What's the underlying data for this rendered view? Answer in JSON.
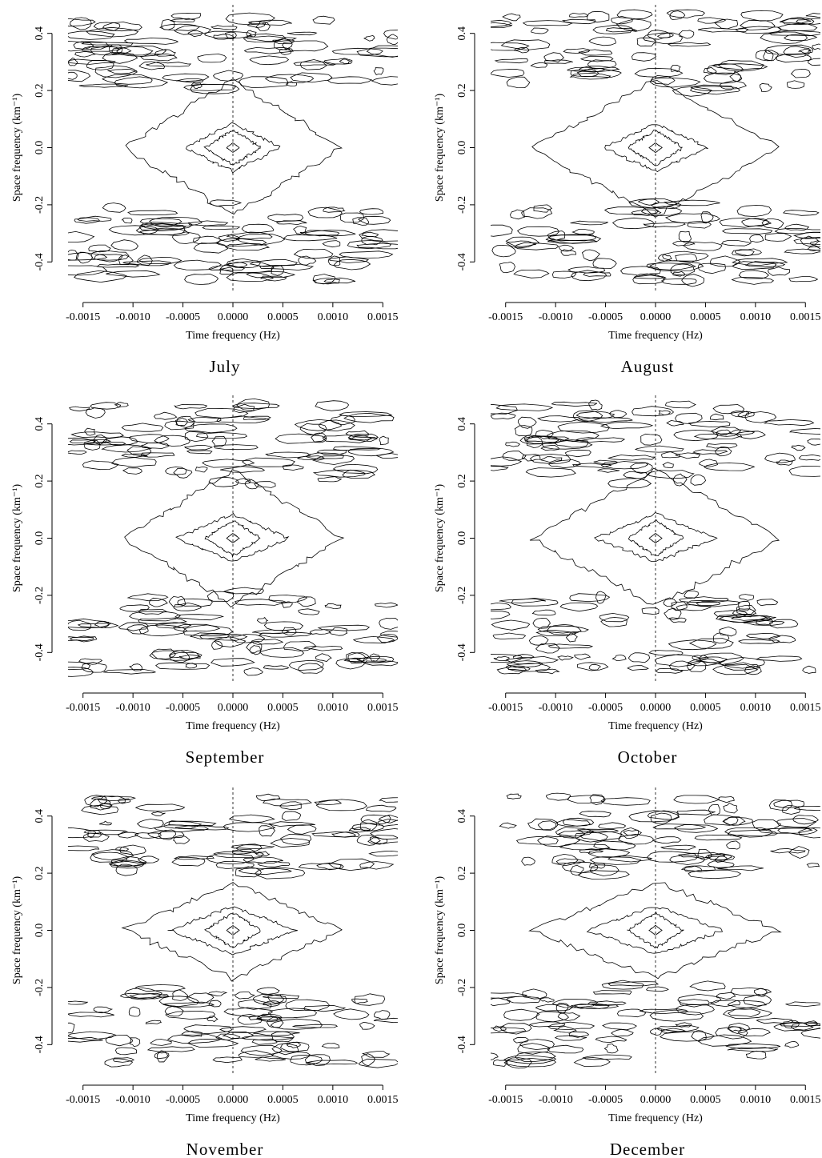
{
  "chart_data": [
    {
      "type": "contour",
      "title": "July",
      "x_label": "Time frequency (Hz)",
      "y_label": "Space frequency (km⁻¹)",
      "xlim": [
        -0.00165,
        0.00165
      ],
      "ylim": [
        -0.5,
        0.5
      ],
      "xticks": [
        -0.0015,
        {
          "value": -0.001,
          "label": "-0.0010"
        },
        -0.0005,
        {
          "value": 0,
          "label": "0.0000"
        },
        0.0005,
        {
          "value": 0.001,
          "label": "0.0010"
        },
        0.0015
      ],
      "yticks": [
        -0.4,
        -0.2,
        {
          "value": 0,
          "label": "0.0"
        },
        0.2,
        0.4
      ]
    },
    {
      "type": "contour",
      "title": "August",
      "x_label": "Time frequency (Hz)",
      "y_label": "Space frequency (km⁻¹)",
      "xlim": [
        -0.00165,
        0.00165
      ],
      "ylim": [
        -0.5,
        0.5
      ],
      "xticks": [
        -0.0015,
        {
          "value": -0.001,
          "label": "-0.0010"
        },
        -0.0005,
        {
          "value": 0,
          "label": "0.0000"
        },
        0.0005,
        {
          "value": 0.001,
          "label": "0.0010"
        },
        0.0015
      ],
      "yticks": [
        -0.4,
        -0.2,
        {
          "value": 0,
          "label": "0.0"
        },
        0.2,
        0.4
      ]
    },
    {
      "type": "contour",
      "title": "September",
      "x_label": "Time frequency (Hz)",
      "y_label": "Space frequency (km⁻¹)",
      "xlim": [
        -0.00165,
        0.00165
      ],
      "ylim": [
        -0.5,
        0.5
      ],
      "xticks": [
        -0.0015,
        {
          "value": -0.001,
          "label": "-0.0010"
        },
        -0.0005,
        {
          "value": 0,
          "label": "0.0000"
        },
        0.0005,
        {
          "value": 0.001,
          "label": "0.0010"
        },
        0.0015
      ],
      "yticks": [
        -0.4,
        -0.2,
        {
          "value": 0,
          "label": "0.0"
        },
        0.2,
        0.4
      ]
    },
    {
      "type": "contour",
      "title": "October",
      "x_label": "Time frequency (Hz)",
      "y_label": "Space frequency (km⁻¹)",
      "xlim": [
        -0.00165,
        0.00165
      ],
      "ylim": [
        -0.5,
        0.5
      ],
      "xticks": [
        -0.0015,
        {
          "value": -0.001,
          "label": "-0.0010"
        },
        -0.0005,
        {
          "value": 0,
          "label": "0.0000"
        },
        0.0005,
        {
          "value": 0.001,
          "label": "0.0010"
        },
        0.0015
      ],
      "yticks": [
        -0.4,
        -0.2,
        {
          "value": 0,
          "label": "0.0"
        },
        0.2,
        0.4
      ]
    },
    {
      "type": "contour",
      "title": "November",
      "x_label": "Time frequency (Hz)",
      "y_label": "Space frequency (km⁻¹)",
      "xlim": [
        -0.00165,
        0.00165
      ],
      "ylim": [
        -0.5,
        0.5
      ],
      "xticks": [
        -0.0015,
        {
          "value": -0.001,
          "label": "-0.0010"
        },
        -0.0005,
        {
          "value": 0,
          "label": "0.0000"
        },
        0.0005,
        {
          "value": 0.001,
          "label": "0.0010"
        },
        0.0015
      ],
      "yticks": [
        -0.4,
        -0.2,
        {
          "value": 0,
          "label": "0.0"
        },
        0.2,
        0.4
      ]
    },
    {
      "type": "contour",
      "title": "December",
      "x_label": "Time frequency (Hz)",
      "y_label": "Space frequency (km⁻¹)",
      "xlim": [
        -0.00165,
        0.00165
      ],
      "ylim": [
        -0.5,
        0.5
      ],
      "xticks": [
        -0.0015,
        {
          "value": -0.001,
          "label": "-0.0010"
        },
        -0.0005,
        {
          "value": 0,
          "label": "0.0000"
        },
        0.0005,
        {
          "value": 0.001,
          "label": "0.0010"
        },
        0.0015
      ],
      "yticks": [
        -0.4,
        -0.2,
        {
          "value": 0,
          "label": "0.0"
        },
        0.2,
        0.4
      ]
    }
  ]
}
